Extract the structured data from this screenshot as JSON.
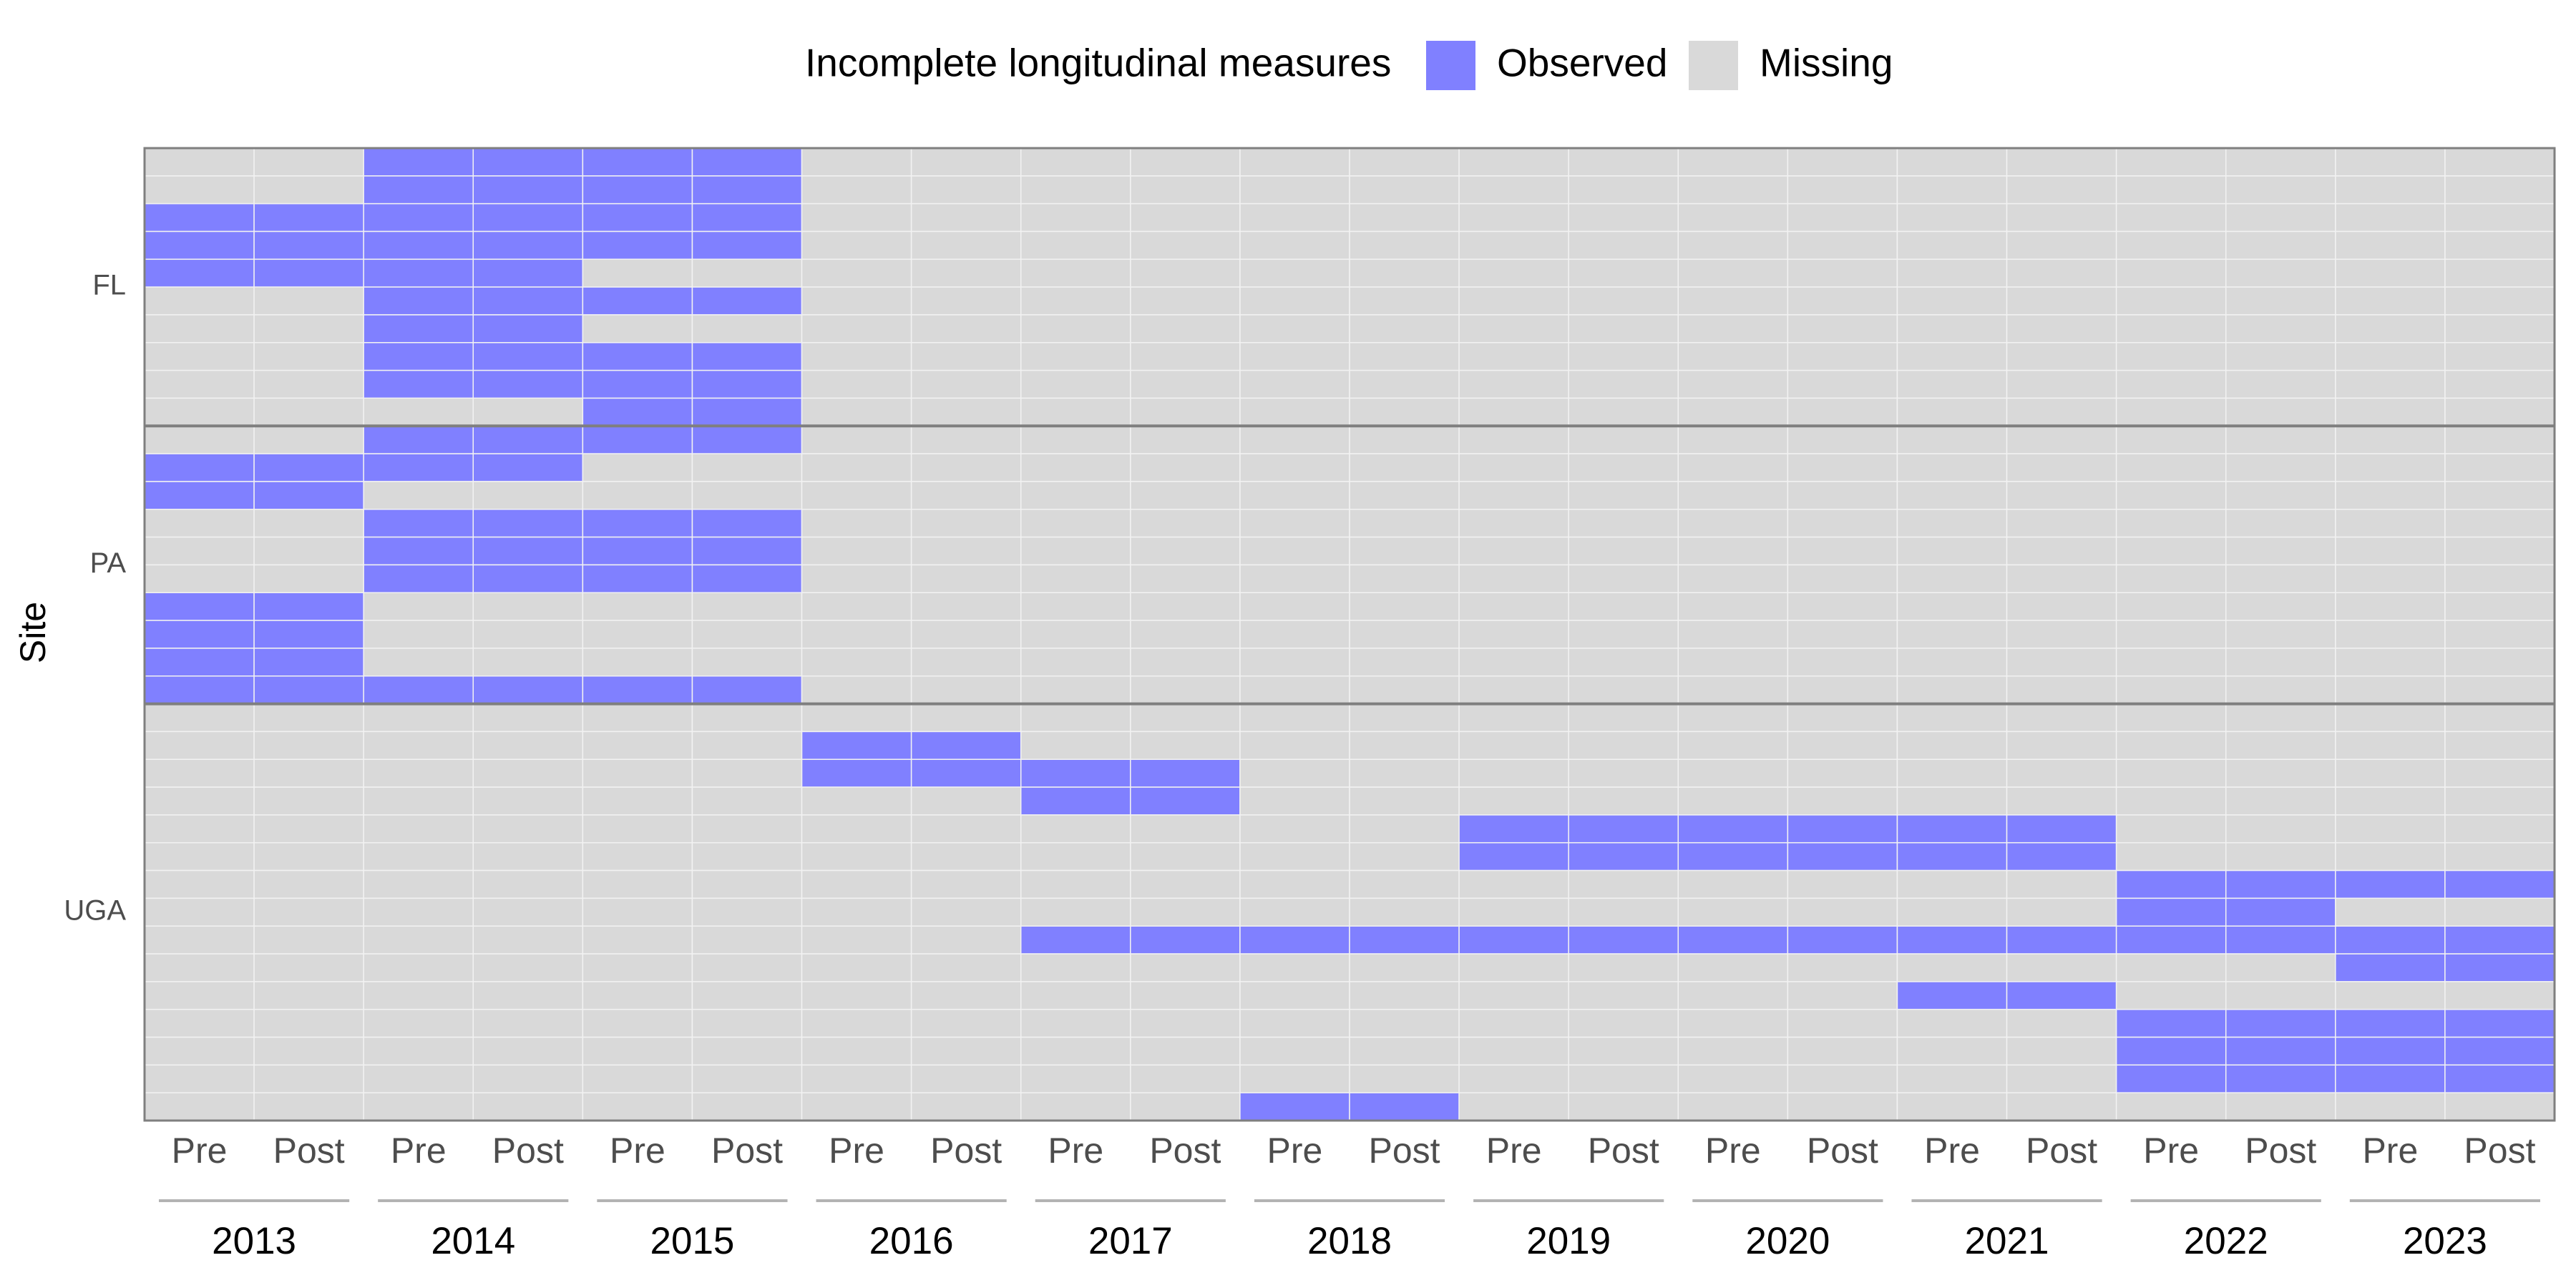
{
  "chart_data": {
    "type": "tile",
    "legend_title": "Incomplete longitudinal measures",
    "series": [
      {
        "name": "Observed",
        "color": "#8080ff"
      },
      {
        "name": "Missing",
        "color": "#d9d9d9"
      }
    ],
    "y_label": "Site",
    "groups": [
      "2013",
      "2014",
      "2015",
      "2016",
      "2017",
      "2018",
      "2019",
      "2020",
      "2021",
      "2022",
      "2023"
    ],
    "subcategories": [
      "Pre",
      "Post"
    ],
    "facets": [
      {
        "name": "FL",
        "rows": [
          [
            0,
            0,
            1,
            1,
            1,
            1,
            0,
            0,
            0,
            0,
            0,
            0,
            0,
            0,
            0,
            0,
            0,
            0,
            0,
            0,
            0,
            0
          ],
          [
            0,
            0,
            1,
            1,
            1,
            1,
            0,
            0,
            0,
            0,
            0,
            0,
            0,
            0,
            0,
            0,
            0,
            0,
            0,
            0,
            0,
            0
          ],
          [
            1,
            1,
            1,
            1,
            1,
            1,
            0,
            0,
            0,
            0,
            0,
            0,
            0,
            0,
            0,
            0,
            0,
            0,
            0,
            0,
            0,
            0
          ],
          [
            1,
            1,
            1,
            1,
            1,
            1,
            0,
            0,
            0,
            0,
            0,
            0,
            0,
            0,
            0,
            0,
            0,
            0,
            0,
            0,
            0,
            0
          ],
          [
            1,
            1,
            1,
            1,
            0,
            0,
            0,
            0,
            0,
            0,
            0,
            0,
            0,
            0,
            0,
            0,
            0,
            0,
            0,
            0,
            0,
            0
          ],
          [
            0,
            0,
            1,
            1,
            1,
            1,
            0,
            0,
            0,
            0,
            0,
            0,
            0,
            0,
            0,
            0,
            0,
            0,
            0,
            0,
            0,
            0
          ],
          [
            0,
            0,
            1,
            1,
            0,
            0,
            0,
            0,
            0,
            0,
            0,
            0,
            0,
            0,
            0,
            0,
            0,
            0,
            0,
            0,
            0,
            0
          ],
          [
            0,
            0,
            1,
            1,
            1,
            1,
            0,
            0,
            0,
            0,
            0,
            0,
            0,
            0,
            0,
            0,
            0,
            0,
            0,
            0,
            0,
            0
          ],
          [
            0,
            0,
            1,
            1,
            1,
            1,
            0,
            0,
            0,
            0,
            0,
            0,
            0,
            0,
            0,
            0,
            0,
            0,
            0,
            0,
            0,
            0
          ],
          [
            0,
            0,
            0,
            0,
            1,
            1,
            0,
            0,
            0,
            0,
            0,
            0,
            0,
            0,
            0,
            0,
            0,
            0,
            0,
            0,
            0,
            0
          ]
        ]
      },
      {
        "name": "PA",
        "rows": [
          [
            0,
            0,
            1,
            1,
            1,
            1,
            0,
            0,
            0,
            0,
            0,
            0,
            0,
            0,
            0,
            0,
            0,
            0,
            0,
            0,
            0,
            0
          ],
          [
            1,
            1,
            1,
            1,
            0,
            0,
            0,
            0,
            0,
            0,
            0,
            0,
            0,
            0,
            0,
            0,
            0,
            0,
            0,
            0,
            0,
            0
          ],
          [
            1,
            1,
            0,
            0,
            0,
            0,
            0,
            0,
            0,
            0,
            0,
            0,
            0,
            0,
            0,
            0,
            0,
            0,
            0,
            0,
            0,
            0
          ],
          [
            0,
            0,
            1,
            1,
            1,
            1,
            0,
            0,
            0,
            0,
            0,
            0,
            0,
            0,
            0,
            0,
            0,
            0,
            0,
            0,
            0,
            0
          ],
          [
            0,
            0,
            1,
            1,
            1,
            1,
            0,
            0,
            0,
            0,
            0,
            0,
            0,
            0,
            0,
            0,
            0,
            0,
            0,
            0,
            0,
            0
          ],
          [
            0,
            0,
            1,
            1,
            1,
            1,
            0,
            0,
            0,
            0,
            0,
            0,
            0,
            0,
            0,
            0,
            0,
            0,
            0,
            0,
            0,
            0
          ],
          [
            1,
            1,
            0,
            0,
            0,
            0,
            0,
            0,
            0,
            0,
            0,
            0,
            0,
            0,
            0,
            0,
            0,
            0,
            0,
            0,
            0,
            0
          ],
          [
            1,
            1,
            0,
            0,
            0,
            0,
            0,
            0,
            0,
            0,
            0,
            0,
            0,
            0,
            0,
            0,
            0,
            0,
            0,
            0,
            0,
            0
          ],
          [
            1,
            1,
            0,
            0,
            0,
            0,
            0,
            0,
            0,
            0,
            0,
            0,
            0,
            0,
            0,
            0,
            0,
            0,
            0,
            0,
            0,
            0
          ],
          [
            1,
            1,
            1,
            1,
            1,
            1,
            0,
            0,
            0,
            0,
            0,
            0,
            0,
            0,
            0,
            0,
            0,
            0,
            0,
            0,
            0,
            0
          ]
        ]
      },
      {
        "name": "UGA",
        "rows": [
          [
            0,
            0,
            0,
            0,
            0,
            0,
            0,
            0,
            0,
            0,
            0,
            0,
            0,
            0,
            0,
            0,
            0,
            0,
            0,
            0,
            0,
            0
          ],
          [
            0,
            0,
            0,
            0,
            0,
            0,
            1,
            1,
            0,
            0,
            0,
            0,
            0,
            0,
            0,
            0,
            0,
            0,
            0,
            0,
            0,
            0
          ],
          [
            0,
            0,
            0,
            0,
            0,
            0,
            1,
            1,
            1,
            1,
            0,
            0,
            0,
            0,
            0,
            0,
            0,
            0,
            0,
            0,
            0,
            0
          ],
          [
            0,
            0,
            0,
            0,
            0,
            0,
            0,
            0,
            1,
            1,
            0,
            0,
            0,
            0,
            0,
            0,
            0,
            0,
            0,
            0,
            0,
            0
          ],
          [
            0,
            0,
            0,
            0,
            0,
            0,
            0,
            0,
            0,
            0,
            0,
            0,
            1,
            1,
            1,
            1,
            1,
            1,
            0,
            0,
            0,
            0
          ],
          [
            0,
            0,
            0,
            0,
            0,
            0,
            0,
            0,
            0,
            0,
            0,
            0,
            1,
            1,
            1,
            1,
            1,
            1,
            0,
            0,
            0,
            0
          ],
          [
            0,
            0,
            0,
            0,
            0,
            0,
            0,
            0,
            0,
            0,
            0,
            0,
            0,
            0,
            0,
            0,
            0,
            0,
            1,
            1,
            1,
            1
          ],
          [
            0,
            0,
            0,
            0,
            0,
            0,
            0,
            0,
            0,
            0,
            0,
            0,
            0,
            0,
            0,
            0,
            0,
            0,
            1,
            1,
            0,
            0
          ],
          [
            0,
            0,
            0,
            0,
            0,
            0,
            0,
            0,
            1,
            1,
            1,
            1,
            1,
            1,
            1,
            1,
            1,
            1,
            1,
            1,
            1,
            1
          ],
          [
            0,
            0,
            0,
            0,
            0,
            0,
            0,
            0,
            0,
            0,
            0,
            0,
            0,
            0,
            0,
            0,
            0,
            0,
            0,
            0,
            1,
            1
          ],
          [
            0,
            0,
            0,
            0,
            0,
            0,
            0,
            0,
            0,
            0,
            0,
            0,
            0,
            0,
            0,
            0,
            1,
            1,
            0,
            0,
            0,
            0
          ],
          [
            0,
            0,
            0,
            0,
            0,
            0,
            0,
            0,
            0,
            0,
            0,
            0,
            0,
            0,
            0,
            0,
            0,
            0,
            1,
            1,
            1,
            1
          ],
          [
            0,
            0,
            0,
            0,
            0,
            0,
            0,
            0,
            0,
            0,
            0,
            0,
            0,
            0,
            0,
            0,
            0,
            0,
            1,
            1,
            1,
            1
          ],
          [
            0,
            0,
            0,
            0,
            0,
            0,
            0,
            0,
            0,
            0,
            0,
            0,
            0,
            0,
            0,
            0,
            0,
            0,
            1,
            1,
            1,
            1
          ],
          [
            0,
            0,
            0,
            0,
            0,
            0,
            0,
            0,
            0,
            0,
            1,
            1,
            0,
            0,
            0,
            0,
            0,
            0,
            0,
            0,
            0,
            0
          ]
        ]
      }
    ]
  }
}
